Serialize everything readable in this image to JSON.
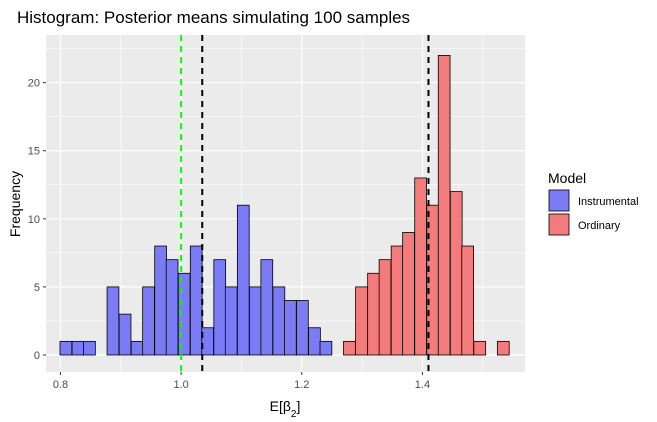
{
  "chart_data": {
    "type": "histogram",
    "title": "Histogram: Posterior means simulating 100 samples",
    "xlabel": {
      "main": "E[β",
      "sub": "2",
      "close": "]"
    },
    "ylabel": "Frequency",
    "xlim": [
      0.776,
      1.57
    ],
    "ylim": [
      -1.25,
      23.5
    ],
    "x_ticks": [
      0.8,
      1.0,
      1.2,
      1.4
    ],
    "x_tick_labels": [
      "0.8",
      "1.0",
      "1.2",
      "1.4"
    ],
    "y_ticks": [
      0,
      5,
      10,
      15,
      20
    ],
    "y_tick_labels": [
      "0",
      "5",
      "10",
      "15",
      "20"
    ],
    "bin_width": 0.0196,
    "background": "#ebebeb",
    "grid": true,
    "legend": {
      "title": "Model",
      "position": "right",
      "entries": [
        {
          "label": "Instrumental",
          "color": "#7b7bf6"
        },
        {
          "label": "Ordinary",
          "color": "#f47b7b"
        }
      ]
    },
    "series": [
      {
        "name": "Instrumental",
        "color": "#7b7bf6",
        "bin_centers": [
          0.809,
          0.829,
          0.848,
          0.868,
          0.887,
          0.907,
          0.927,
          0.946,
          0.966,
          0.985,
          1.005,
          1.025,
          1.044,
          1.064,
          1.083,
          1.103,
          1.123,
          1.142,
          1.162,
          1.181,
          1.201,
          1.221,
          1.24
        ],
        "values": [
          1,
          1,
          1,
          0,
          5,
          3,
          1,
          5,
          8,
          7,
          6,
          8,
          2,
          7,
          5,
          11,
          5,
          7,
          5,
          4,
          4,
          2,
          1
        ]
      },
      {
        "name": "Ordinary",
        "color": "#f47b7b",
        "bin_centers": [
          1.279,
          1.299,
          1.319,
          1.338,
          1.358,
          1.377,
          1.397,
          1.417,
          1.436,
          1.456,
          1.475,
          1.495,
          1.515,
          1.534
        ],
        "values": [
          1,
          5,
          6,
          7,
          8,
          9,
          13,
          11,
          22,
          12,
          8,
          1,
          0,
          1
        ]
      }
    ],
    "reference_lines": [
      {
        "x": 1.0,
        "color": "#00ff00",
        "style": "dashed"
      },
      {
        "x": 1.035,
        "color": "#000000",
        "style": "dashed"
      },
      {
        "x": 1.41,
        "color": "#000000",
        "style": "dashed"
      }
    ]
  }
}
